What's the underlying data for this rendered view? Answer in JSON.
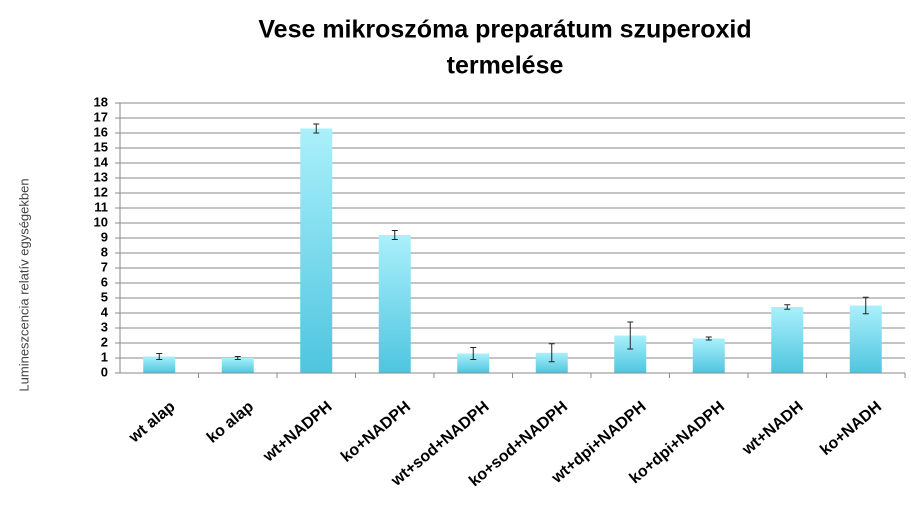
{
  "chart_data": {
    "type": "bar",
    "title": [
      "Vese mikroszóma preparátum szuperoxid",
      "termelése"
    ],
    "y_label": "Lumineszcencia relatív egységekben",
    "categories": [
      "wt alap",
      "ko alap",
      "wt+NADPH",
      "ko+NADPH",
      "wt+sod+NADPH",
      "ko+sod+NADPH",
      "wt+dpi+NADPH",
      "ko+dpi+NADPH",
      "wt+NADH",
      "ko+NADH"
    ],
    "values": [
      1.1,
      1.0,
      16.3,
      9.2,
      1.3,
      1.35,
      2.5,
      2.3,
      4.4,
      4.5
    ],
    "errors": [
      0.2,
      0.1,
      0.3,
      0.3,
      0.4,
      0.6,
      0.9,
      0.1,
      0.15,
      0.55
    ],
    "color": "#4ec5df",
    "ylim": [
      0,
      18
    ],
    "yticks": [
      0,
      1,
      2,
      3,
      4,
      5,
      6,
      7,
      8,
      9,
      10,
      11,
      12,
      13,
      14,
      15,
      16,
      17,
      18
    ],
    "grid": true
  }
}
